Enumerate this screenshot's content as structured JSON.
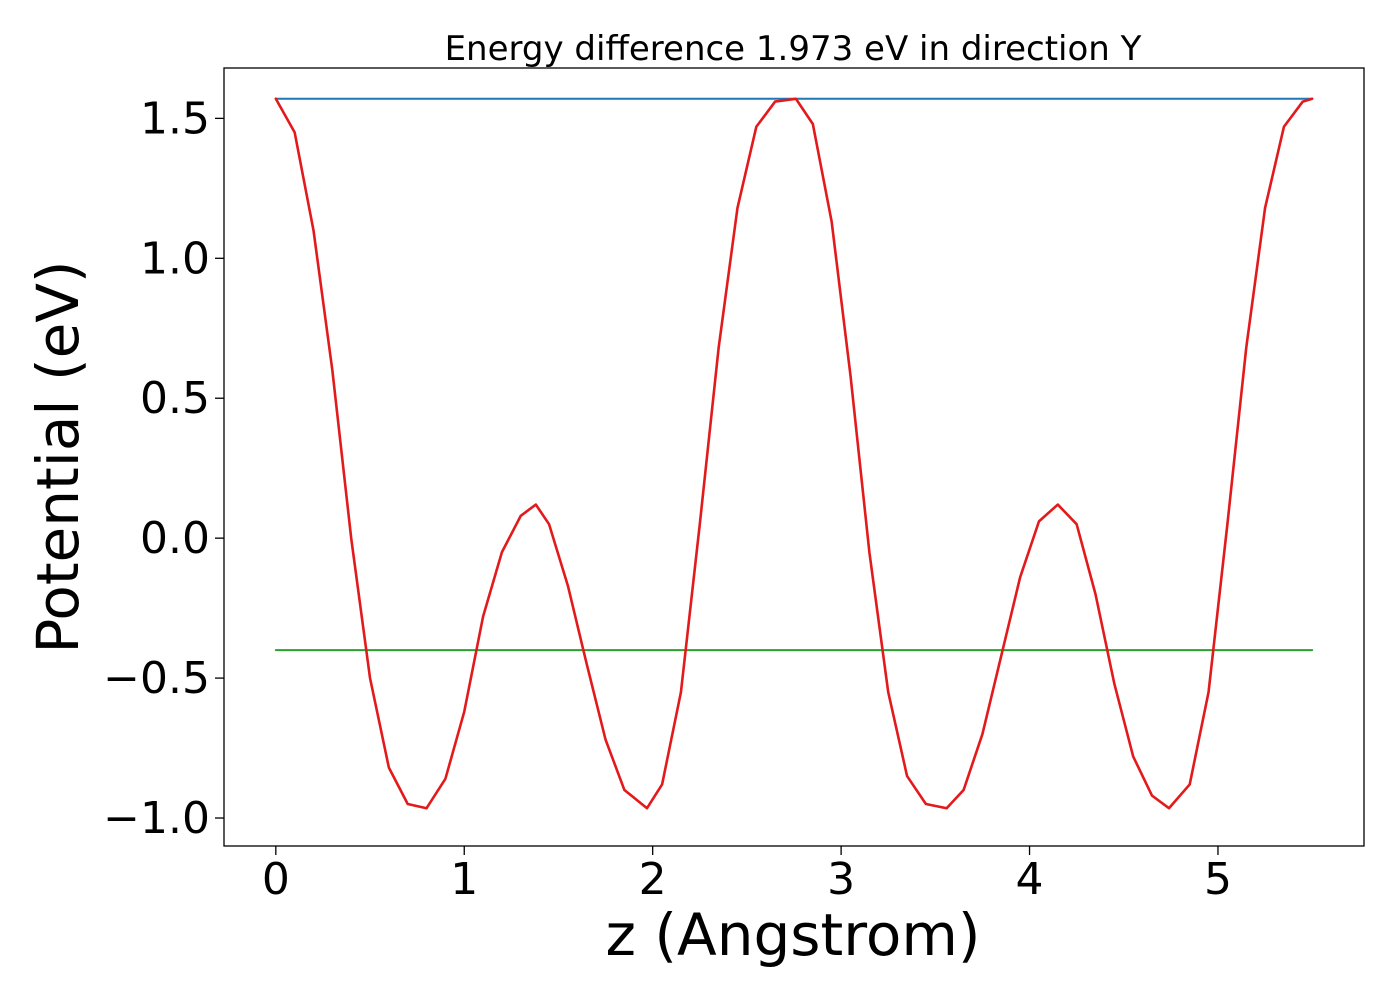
{
  "chart_data": {
    "type": "line",
    "title": "Energy difference 1.973 eV in direction Y",
    "xlabel": "z (Angstrom)",
    "ylabel": "Potential (eV)",
    "xlim": [
      -0.275,
      5.775
    ],
    "ylim": [
      -1.1,
      1.68
    ],
    "xticks": [
      0,
      1,
      2,
      3,
      4,
      5
    ],
    "xtick_labels": [
      "0",
      "1",
      "2",
      "3",
      "4",
      "5"
    ],
    "yticks": [
      -1.0,
      -0.5,
      0.0,
      0.5,
      1.0,
      1.5
    ],
    "ytick_labels": [
      "−1.0",
      "−0.5",
      "0.0",
      "0.5",
      "1.0",
      "1.5"
    ],
    "grid": false,
    "series": [
      {
        "color": "#1f77b4",
        "x": [
          0,
          5.5
        ],
        "y": [
          1.57,
          1.57
        ]
      },
      {
        "color": "#2ca02c",
        "x": [
          0,
          5.5
        ],
        "y": [
          -0.4,
          -0.4
        ]
      },
      {
        "color": "#e31a1c",
        "x": [
          0,
          0.1,
          0.2,
          0.3,
          0.4,
          0.5,
          0.6,
          0.7,
          0.8,
          0.9,
          1.0,
          1.1,
          1.2,
          1.3,
          1.38,
          1.45,
          1.55,
          1.65,
          1.75,
          1.85,
          1.97,
          2.05,
          2.15,
          2.25,
          2.35,
          2.45,
          2.55,
          2.65,
          2.76,
          2.85,
          2.95,
          3.05,
          3.15,
          3.25,
          3.35,
          3.45,
          3.56,
          3.65,
          3.75,
          3.85,
          3.95,
          4.05,
          4.15,
          4.25,
          4.35,
          4.45,
          4.55,
          4.65,
          4.74,
          4.85,
          4.95,
          5.05,
          5.15,
          5.25,
          5.35,
          5.45,
          5.5
        ],
        "y": [
          1.57,
          1.45,
          1.1,
          0.6,
          0.0,
          -0.5,
          -0.82,
          -0.95,
          -0.965,
          -0.86,
          -0.62,
          -0.28,
          -0.05,
          0.08,
          0.12,
          0.05,
          -0.17,
          -0.45,
          -0.72,
          -0.9,
          -0.965,
          -0.88,
          -0.55,
          0.05,
          0.68,
          1.18,
          1.47,
          1.56,
          1.57,
          1.48,
          1.13,
          0.58,
          -0.05,
          -0.55,
          -0.85,
          -0.95,
          -0.965,
          -0.9,
          -0.7,
          -0.42,
          -0.14,
          0.06,
          0.12,
          0.05,
          -0.2,
          -0.52,
          -0.78,
          -0.92,
          -0.965,
          -0.88,
          -0.55,
          0.05,
          0.68,
          1.18,
          1.47,
          1.56,
          1.57
        ]
      }
    ]
  }
}
